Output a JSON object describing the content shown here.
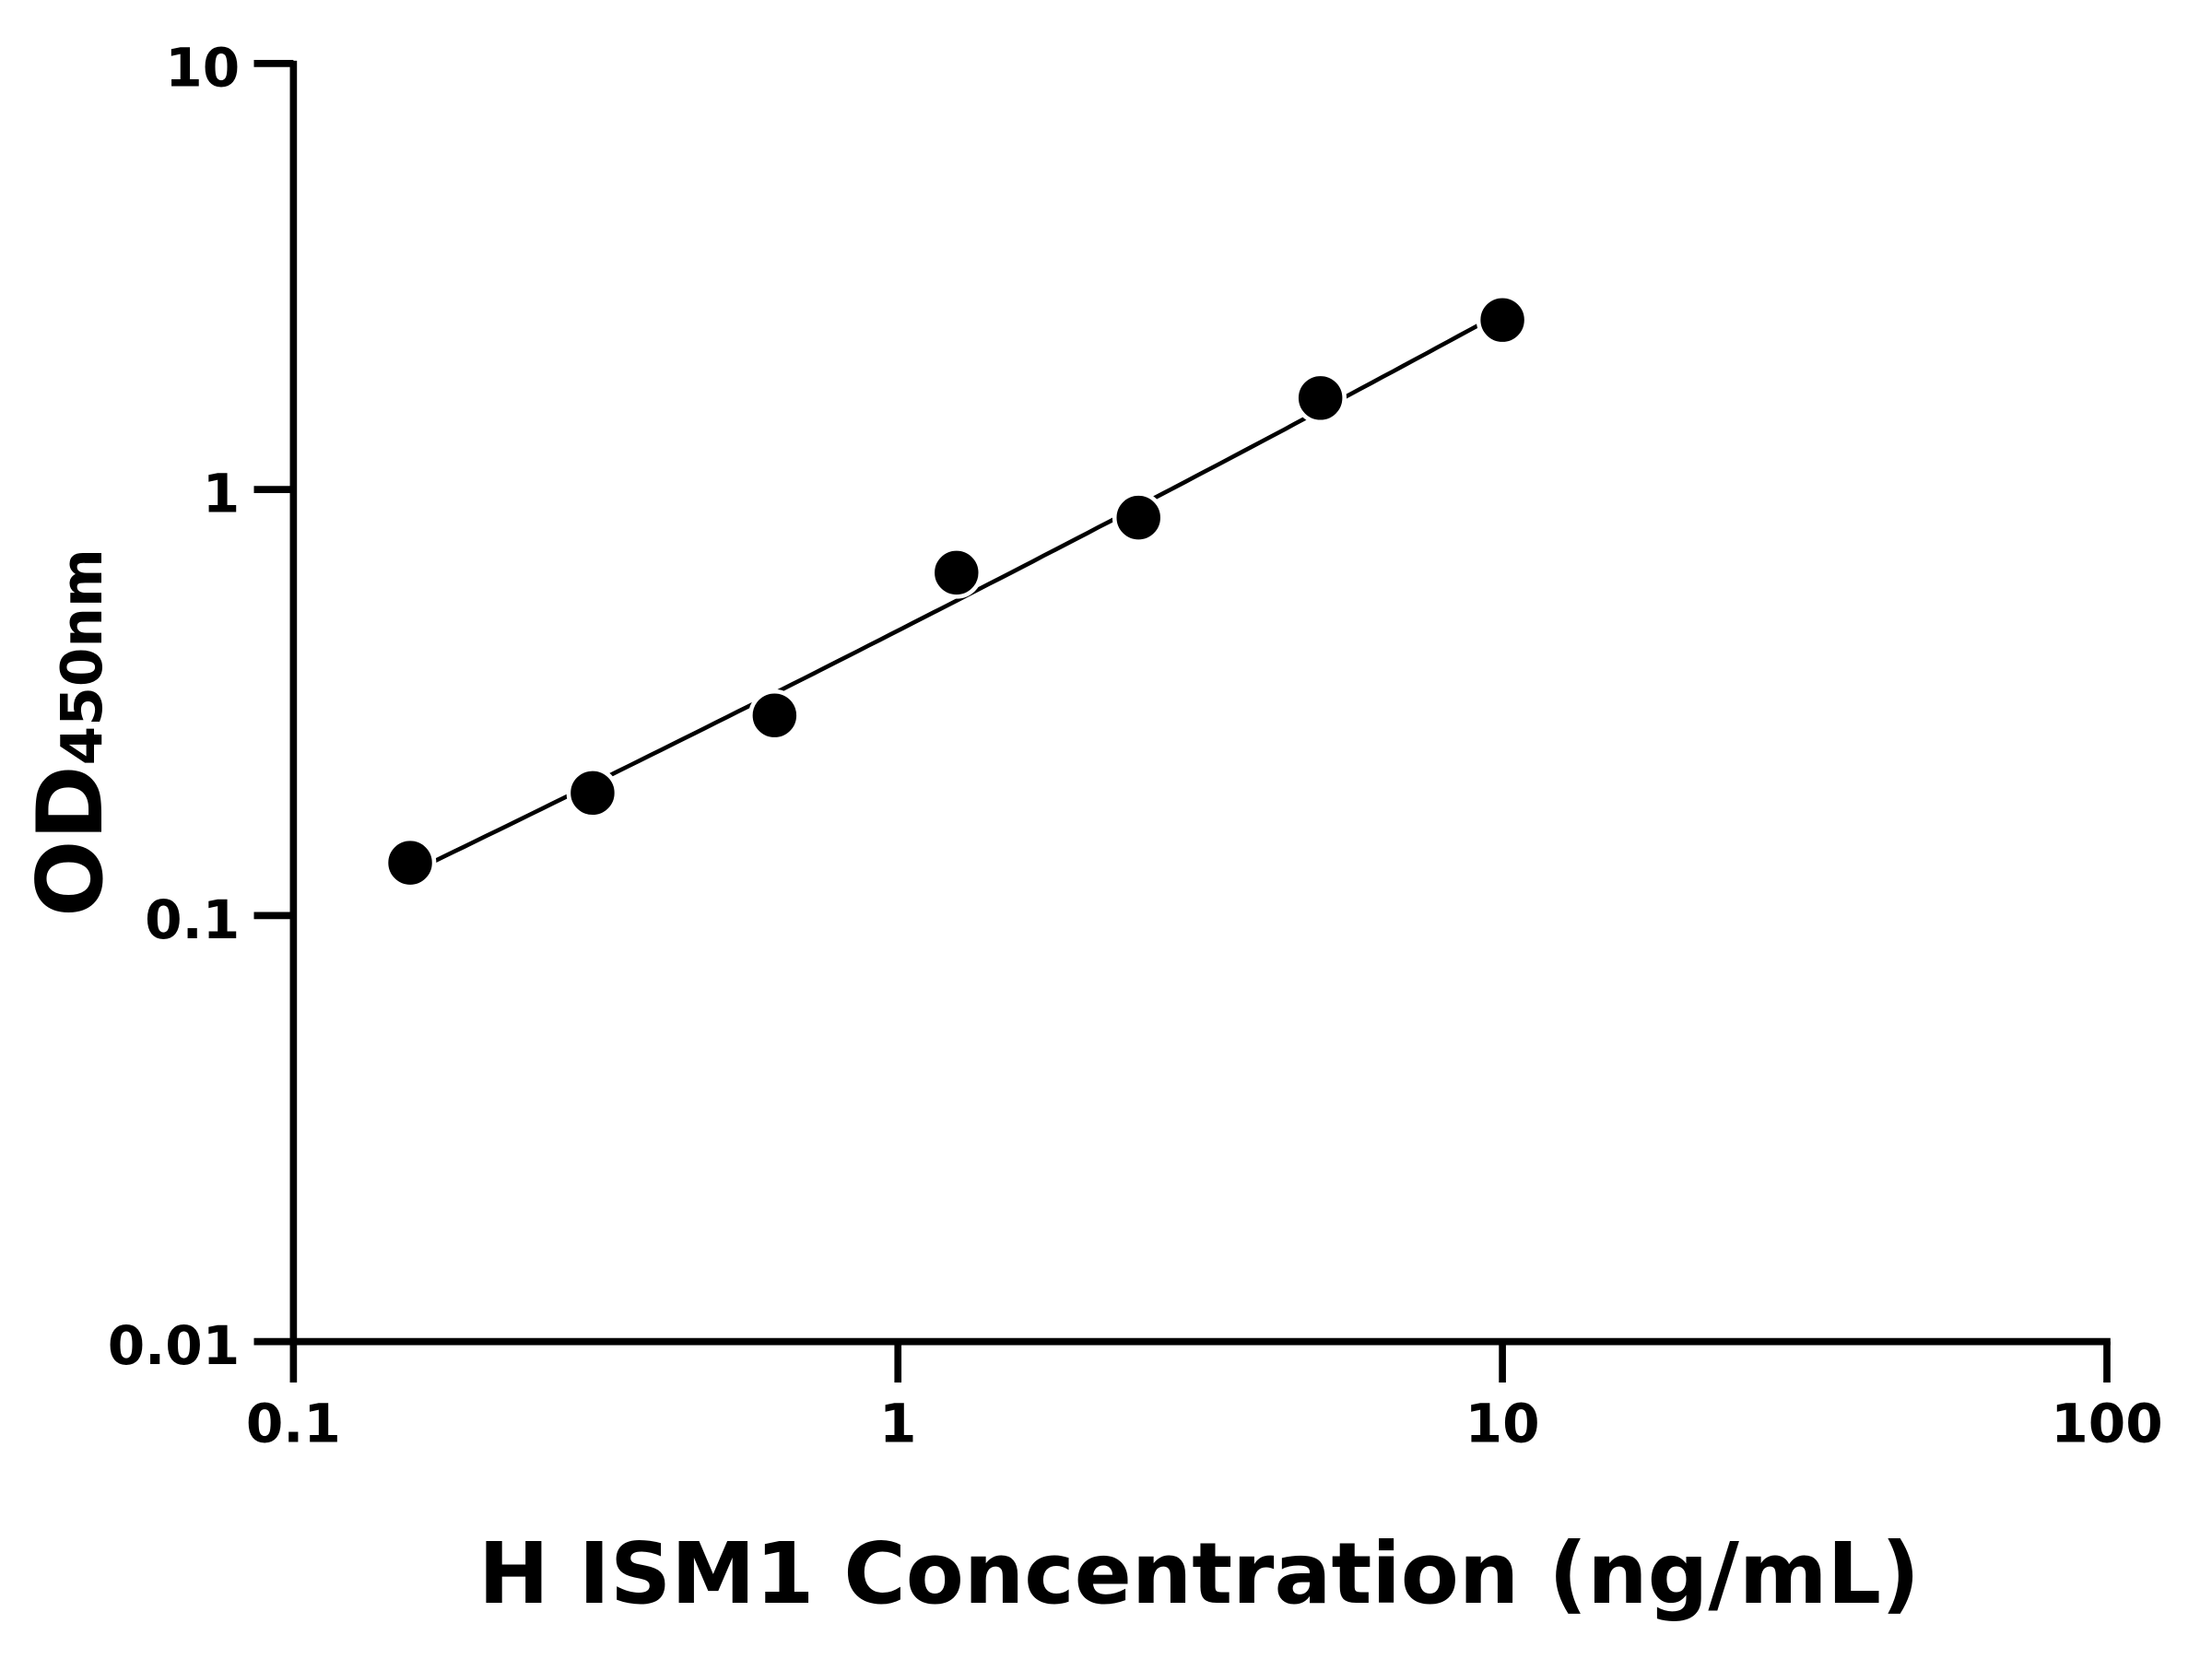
{
  "chart_data": {
    "type": "scatter",
    "title": "",
    "xlabel": "H ISM1 Concentration (ng/mL)",
    "ylabel_main": "OD",
    "ylabel_sub": "450nm",
    "xscale": "log",
    "yscale": "log",
    "xlim": [
      0.1,
      100
    ],
    "ylim": [
      0.01,
      10
    ],
    "xticks": [
      0.1,
      1,
      10,
      100
    ],
    "xtick_labels": [
      "0.1",
      "1",
      "10",
      "100"
    ],
    "yticks": [
      0.01,
      0.1,
      1,
      10
    ],
    "ytick_labels": [
      "0.01",
      "0.1",
      "1",
      "10"
    ],
    "grid": false,
    "fit_curve": true,
    "x": [
      0.156,
      0.3125,
      0.625,
      1.25,
      2.5,
      5,
      10
    ],
    "y": [
      0.133,
      0.194,
      0.295,
      0.638,
      0.859,
      1.64,
      2.5
    ],
    "marker_color": "#000000",
    "line_color": "#000000"
  }
}
